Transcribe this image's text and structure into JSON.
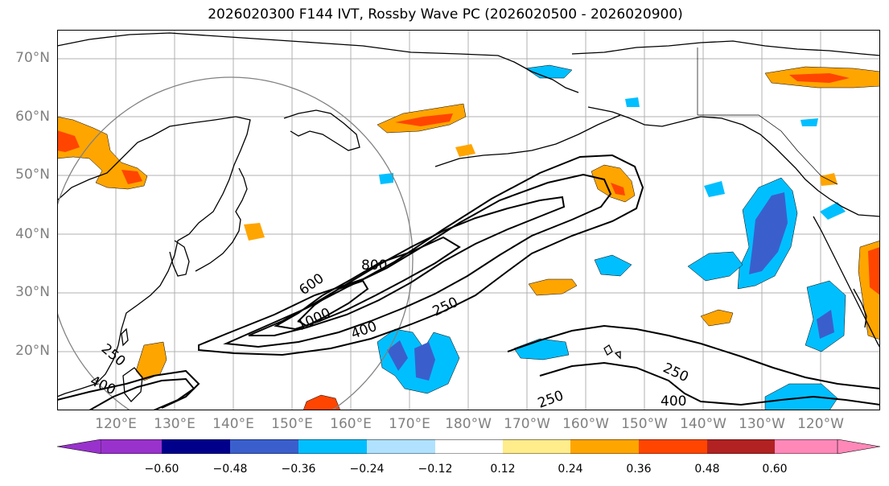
{
  "title": "2026020300 F144 IVT, Rossby Wave PC (2026020500 - 2026020900)",
  "map": {
    "region": "North Pacific",
    "lat_range": [
      10,
      75
    ],
    "lon_range_deg_east": [
      110,
      250
    ],
    "lat_labels": [
      "70°N",
      "60°N",
      "50°N",
      "40°N",
      "30°N",
      "20°N"
    ],
    "lon_labels": [
      "120°E",
      "130°E",
      "140°E",
      "150°E",
      "160°E",
      "170°E",
      "180°W",
      "170°W",
      "160°W",
      "150°W",
      "140°W",
      "130°W",
      "120°W"
    ],
    "contour_labels": [
      "1000",
      "800",
      "600",
      "400",
      "250",
      "250",
      "250",
      "250",
      "400",
      "400"
    ],
    "contour_levels": [
      250,
      400,
      600,
      800,
      1000
    ],
    "circle_color": "#808080",
    "grid_color": "#b0b0b0"
  },
  "colorbar": {
    "ticks": [
      "−0.60",
      "−0.48",
      "−0.36",
      "−0.24",
      "−0.12",
      "0.12",
      "0.24",
      "0.36",
      "0.48",
      "0.60"
    ],
    "colors": [
      "#9932cc",
      "#00008b",
      "#3a5fcd",
      "#00bfff",
      "#b0e2ff",
      "#ffffff",
      "#ffec8b",
      "#ffa500",
      "#ff4500",
      "#b22222",
      "#ff88b8"
    ]
  }
}
